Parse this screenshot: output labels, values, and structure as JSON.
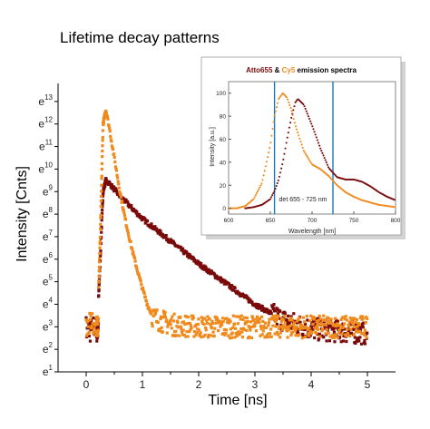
{
  "chart_data": [
    {
      "type": "scatter",
      "title": "Lifetime decay patterns",
      "xlabel": "Time [ns]",
      "ylabel": "Intensity [Cnts]",
      "xlim": [
        -0.5,
        5.5
      ],
      "ylim": [
        1,
        13.8
      ],
      "yscale": "log_e",
      "x_ticks": [
        "0",
        "1",
        "2",
        "3",
        "4",
        "5"
      ],
      "y_ticks": [
        {
          "base": "e",
          "exp": "1"
        },
        {
          "base": "e",
          "exp": "2"
        },
        {
          "base": "e",
          "exp": "3"
        },
        {
          "base": "e",
          "exp": "4"
        },
        {
          "base": "e",
          "exp": "5"
        },
        {
          "base": "e",
          "exp": "6"
        },
        {
          "base": "e",
          "exp": "7"
        },
        {
          "base": "e",
          "exp": "8"
        },
        {
          "base": "e",
          "exp": "9"
        },
        {
          "base": "e",
          "exp": "10"
        },
        {
          "base": "e",
          "exp": "11"
        },
        {
          "base": "e",
          "exp": "12"
        },
        {
          "base": "e",
          "exp": "13"
        }
      ],
      "series": [
        {
          "color": "#7a0a0a",
          "x": [
            0.0,
            0.1,
            0.2,
            0.25,
            0.3,
            0.35,
            0.4,
            0.5,
            0.6,
            0.8,
            1.0,
            1.5,
            2.0,
            2.5,
            3.0,
            3.5,
            4.0,
            4.5,
            5.0
          ],
          "y": [
            3.0,
            3.0,
            3.1,
            6.0,
            9.0,
            9.5,
            9.4,
            9.1,
            8.8,
            8.3,
            7.8,
            6.8,
            5.8,
            4.9,
            4.0,
            3.3,
            2.9,
            2.8,
            2.7
          ]
        },
        {
          "color": "#f08a1c",
          "x": [
            0.0,
            0.1,
            0.2,
            0.25,
            0.3,
            0.35,
            0.4,
            0.5,
            0.6,
            0.7,
            0.8,
            0.9,
            1.0,
            1.1,
            1.2,
            1.5,
            2.0,
            3.0,
            4.0,
            5.0
          ],
          "y": [
            3.0,
            3.0,
            3.2,
            7.0,
            12.0,
            12.6,
            12.0,
            10.5,
            9.0,
            7.7,
            6.6,
            5.6,
            4.7,
            3.9,
            3.4,
            3.1,
            3.0,
            3.0,
            3.0,
            3.0
          ]
        }
      ]
    },
    {
      "type": "line",
      "title_parts": [
        "Atto655",
        " & ",
        "Cy5",
        " emission spectra"
      ],
      "title_colors": [
        "#7a0a0a",
        "#000000",
        "#f08a1c",
        "#000000"
      ],
      "xlabel": "Wavelength [nm]",
      "ylabel": "Intensity [a.u.]",
      "xlim": [
        600,
        800
      ],
      "ylim": [
        -5,
        110
      ],
      "x_ticks": [
        "600",
        "650",
        "700",
        "750",
        "800"
      ],
      "y_ticks": [
        "0",
        "20",
        "40",
        "60",
        "80",
        "100"
      ],
      "annotation": "det 655 - 725 nm",
      "vlines": [
        655,
        725
      ],
      "vline_color": "#1a78b4",
      "series": [
        {
          "color": "#7a0a0a",
          "x": [
            620,
            630,
            640,
            650,
            655,
            660,
            665,
            670,
            675,
            680,
            683,
            690,
            700,
            710,
            720,
            730,
            740,
            750,
            760,
            770,
            780,
            790,
            800
          ],
          "y": [
            0,
            1,
            3,
            8,
            15,
            25,
            40,
            60,
            78,
            92,
            95,
            90,
            72,
            52,
            35,
            27,
            25,
            25,
            23,
            19,
            14,
            10,
            7
          ]
        },
        {
          "color": "#f08a1c",
          "x": [
            600,
            610,
            620,
            630,
            640,
            650,
            655,
            660,
            665,
            670,
            675,
            680,
            690,
            700,
            710,
            720,
            730,
            740,
            750,
            760,
            770,
            780,
            790,
            800
          ],
          "y": [
            0,
            0,
            2,
            8,
            22,
            55,
            80,
            95,
            100,
            96,
            86,
            72,
            50,
            38,
            34,
            28,
            20,
            14,
            10,
            7,
            5,
            3,
            2,
            1
          ]
        }
      ]
    }
  ]
}
